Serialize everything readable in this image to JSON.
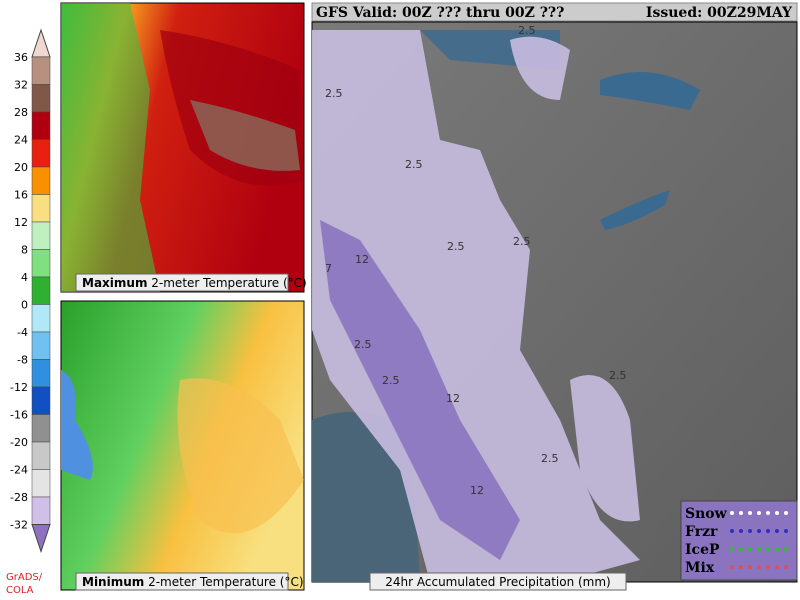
{
  "header": {
    "title": "GFS Valid: 00Z ??? thru 00Z ???",
    "issued": "Issued: 00Z29MAY"
  },
  "colorbar": {
    "ticks": [
      "36",
      "32",
      "28",
      "24",
      "20",
      "16",
      "12",
      "8",
      "4",
      "0",
      "-4",
      "-8",
      "-12",
      "-16",
      "-20",
      "-24",
      "-28",
      "-32"
    ],
    "colors": [
      "#f0d8d0",
      "#b89080",
      "#805848",
      "#b00010",
      "#e82010",
      "#f89000",
      "#f8e080",
      "#c0f0c0",
      "#80e080",
      "#30b030",
      "#b0e8f8",
      "#70c0f0",
      "#3090e0",
      "#1050c0",
      "#909090",
      "#c8c8c8",
      "#e4e4e4",
      "#d0c0e8",
      "#9070c0"
    ]
  },
  "credit": {
    "line1": "GrADS/",
    "line2": "COLA"
  },
  "max_panel": {
    "bold": "Maximum",
    "label": "2-meter Temperature (°C)"
  },
  "min_panel": {
    "bold": "Minimum",
    "label": "2-meter Temperature (°C)"
  },
  "precip_panel": {
    "label": "24hr Accumulated Precipitation (mm)"
  },
  "legend": {
    "items": [
      {
        "name": "Snow",
        "color": "#ffffff"
      },
      {
        "name": "Frzr",
        "color": "#3030c0"
      },
      {
        "name": "IceP",
        "color": "#30c030"
      },
      {
        "name": "Mix",
        "color": "#e05050"
      }
    ]
  },
  "map": {
    "contour_labels": [
      "2.5",
      "2.5",
      "2.5",
      "2.5",
      "2.5",
      "2.5",
      "2.5",
      "2.5",
      "2.5",
      "7",
      "12",
      "12",
      "12"
    ]
  }
}
